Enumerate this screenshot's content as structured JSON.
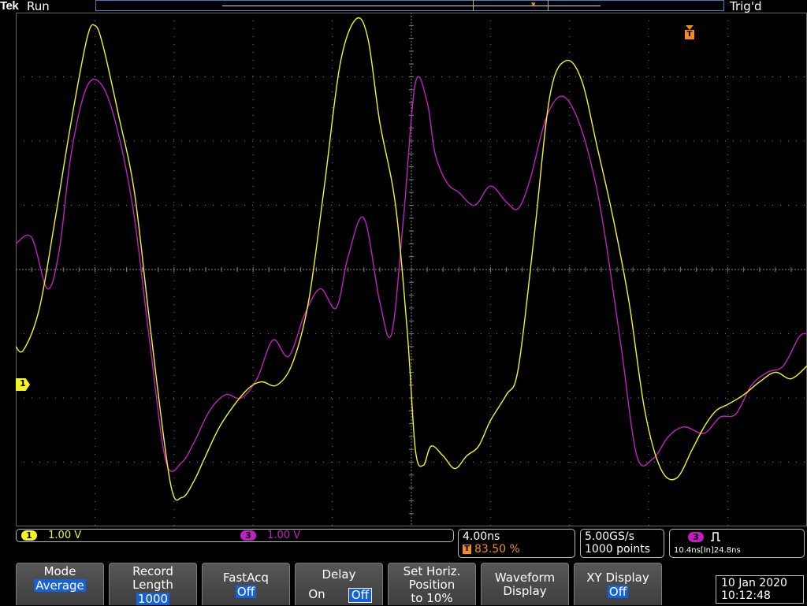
{
  "status": {
    "brand": "Tek",
    "acquisition": "Run",
    "trigger_state": "Trig'd"
  },
  "colors": {
    "ch1": "#f5f51e",
    "ch3": "#c21fc2",
    "trigger": "#f58b1f",
    "grid": "#7f7f7f",
    "menu_value_bg": "#1562d6"
  },
  "markers": {
    "ch1_label": "1",
    "trigger_label": "T"
  },
  "channels": {
    "ch1": {
      "number": "1",
      "scale": "1.00 V"
    },
    "ch3": {
      "number": "3",
      "scale": "1.00 V"
    }
  },
  "horizontal": {
    "time_per_div": "4.00ns",
    "trigger_position": "83.50 %"
  },
  "sampling": {
    "rate": "5.00GS/s",
    "record": "1000 points"
  },
  "trigger": {
    "source": "3",
    "type_icon": "pulse-width-icon",
    "readout": "10.4ns[In]24.8ns"
  },
  "menu": {
    "mode": {
      "label": "Mode",
      "value": "Average"
    },
    "record_length": {
      "label1": "Record",
      "label2": "Length",
      "value": "1000"
    },
    "fastacq": {
      "label": "FastAcq",
      "value": "Off"
    },
    "delay": {
      "label": "Delay",
      "on": "On",
      "off": "Off"
    },
    "horiz_position": {
      "line1": "Set Horiz.",
      "line2": "Position",
      "line3": "to 10%"
    },
    "waveform_display": {
      "line1": "Waveform",
      "line2": "Display"
    },
    "xy_display": {
      "label": "XY Display",
      "value": "Off"
    }
  },
  "datetime": {
    "date": "10 Jan  2020",
    "time": "10:12:48"
  },
  "chart_data": {
    "type": "line",
    "x_unit": "divisions",
    "y_unit": "divisions",
    "xlim": [
      -5,
      5
    ],
    "ylim": [
      -4,
      4
    ],
    "grid": true,
    "series": [
      {
        "channel": "1",
        "x": [
          -5.0,
          -4.9,
          -4.7,
          -4.5,
          -4.3,
          -4.1,
          -4.0,
          -3.9,
          -3.7,
          -3.5,
          -3.3,
          -3.05,
          -2.9,
          -2.75,
          -2.6,
          -2.4,
          -2.1,
          -1.9,
          -1.7,
          -1.5,
          -1.3,
          -1.1,
          -0.9,
          -0.7,
          -0.55,
          -0.4,
          -0.2,
          -0.05,
          0.05,
          0.15,
          0.25,
          0.4,
          0.55,
          0.7,
          0.85,
          1.0,
          1.2,
          1.35,
          1.55,
          1.75,
          1.95,
          2.15,
          2.35,
          2.55,
          2.75,
          2.95,
          3.15,
          3.35,
          3.55,
          3.7,
          3.85,
          4.0,
          4.2,
          4.4,
          4.6,
          4.8,
          5.0
        ],
        "y": [
          -1.2,
          -1.25,
          -0.6,
          0.8,
          2.3,
          3.6,
          3.8,
          3.5,
          2.4,
          1.2,
          -0.9,
          -3.3,
          -3.55,
          -3.3,
          -2.9,
          -2.4,
          -1.9,
          -1.75,
          -1.8,
          -1.45,
          -0.5,
          1.3,
          3.2,
          3.9,
          3.6,
          2.3,
          1.0,
          -1.0,
          -2.8,
          -3.05,
          -2.75,
          -2.9,
          -3.1,
          -2.9,
          -2.75,
          -2.35,
          -1.95,
          -1.55,
          0.5,
          2.7,
          3.25,
          2.95,
          1.9,
          0.8,
          -0.5,
          -2.2,
          -3.1,
          -3.25,
          -2.8,
          -2.45,
          -2.2,
          -2.1,
          -1.95,
          -1.75,
          -1.6,
          -1.7,
          -1.5
        ]
      },
      {
        "channel": "3",
        "x": [
          -5.0,
          -4.8,
          -4.6,
          -4.45,
          -4.3,
          -4.1,
          -3.9,
          -3.7,
          -3.5,
          -3.3,
          -3.1,
          -2.9,
          -2.75,
          -2.55,
          -2.35,
          -2.15,
          -1.95,
          -1.75,
          -1.55,
          -1.35,
          -1.15,
          -0.95,
          -0.8,
          -0.6,
          -0.4,
          -0.25,
          -0.1,
          0.05,
          0.2,
          0.3,
          0.45,
          0.6,
          0.8,
          1.0,
          1.2,
          1.35,
          1.5,
          1.7,
          1.9,
          2.1,
          2.3,
          2.45,
          2.65,
          2.85,
          3.05,
          3.25,
          3.45,
          3.7,
          3.9,
          4.1,
          4.3,
          4.5,
          4.7,
          4.9,
          5.0
        ],
        "y": [
          0.4,
          0.5,
          -0.3,
          0.3,
          1.8,
          2.85,
          2.85,
          2.1,
          0.8,
          -1.2,
          -3.0,
          -3.0,
          -2.7,
          -2.2,
          -1.95,
          -2.0,
          -1.7,
          -1.1,
          -1.35,
          -0.7,
          -0.3,
          -0.6,
          0.2,
          0.8,
          -0.5,
          -1.0,
          0.8,
          2.9,
          2.6,
          1.8,
          1.35,
          1.2,
          1.0,
          1.3,
          1.05,
          0.95,
          1.4,
          2.35,
          2.7,
          2.35,
          1.5,
          0.5,
          -1.2,
          -2.9,
          -2.95,
          -2.6,
          -2.45,
          -2.55,
          -2.3,
          -2.25,
          -1.8,
          -1.6,
          -1.5,
          -1.05,
          -1.0
        ]
      }
    ]
  }
}
